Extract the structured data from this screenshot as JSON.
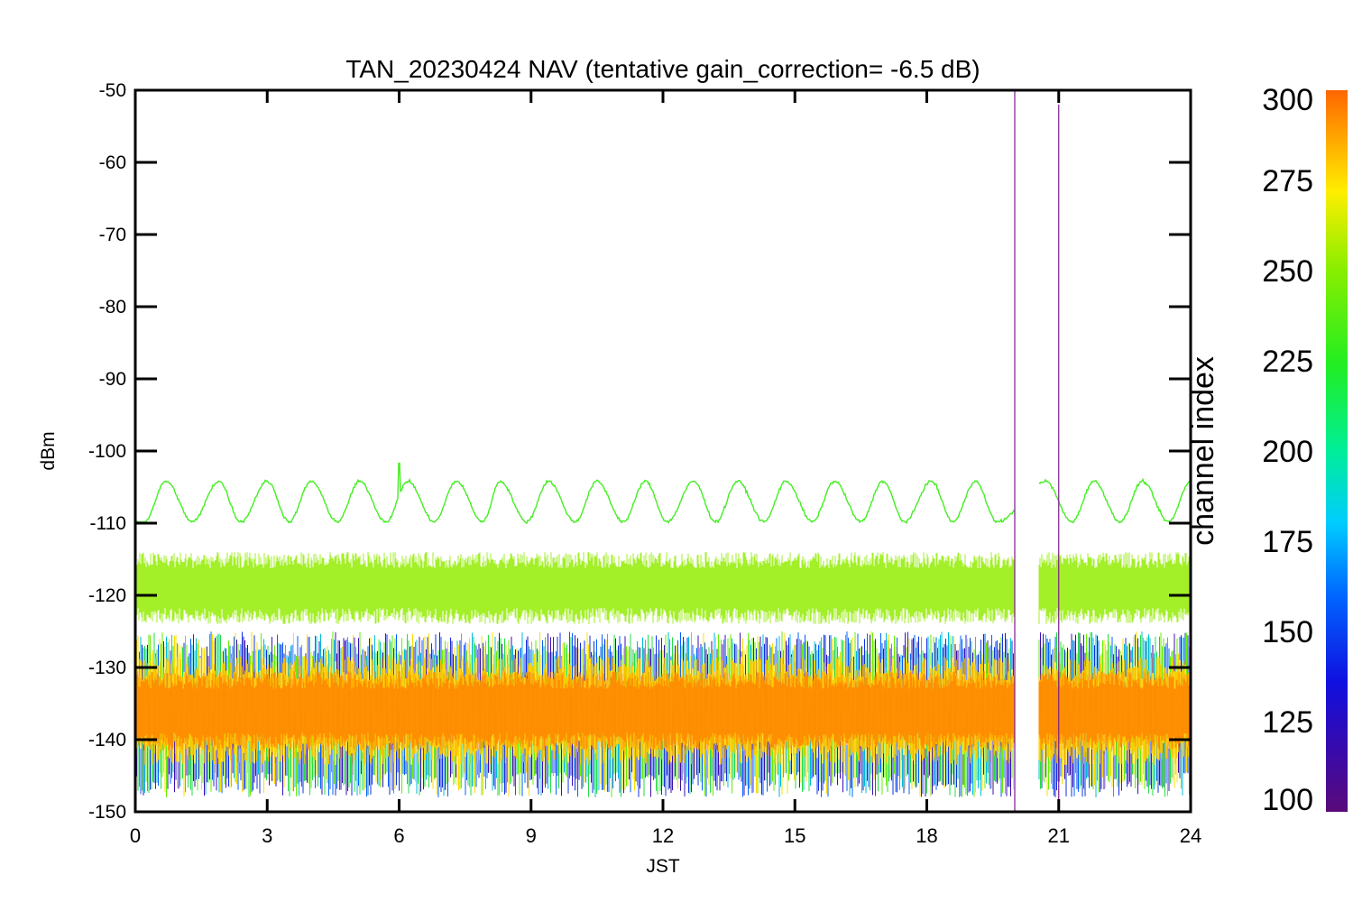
{
  "chart_data": {
    "type": "line",
    "title": "TAN_20230424 NAV (tentative gain_correction= -6.5 dB)",
    "xlabel": "JST",
    "ylabel": "dBm",
    "xlim": [
      0,
      24
    ],
    "ylim": [
      -150,
      -50
    ],
    "x_ticks": [
      "0",
      "3",
      "6",
      "9",
      "12",
      "15",
      "18",
      "21",
      "24"
    ],
    "y_ticks": [
      "-50",
      "-60",
      "-70",
      "-80",
      "-90",
      "-100",
      "-110",
      "-120",
      "-130",
      "-140",
      "-150"
    ],
    "colorbar": {
      "label": "channel index",
      "range": [
        100,
        300
      ],
      "ticks": [
        "300",
        "275",
        "250",
        "225",
        "200",
        "175",
        "150",
        "125",
        "100"
      ],
      "colormap": "rainbow"
    },
    "data_gap": [
      20.0,
      20.55
    ],
    "spikes": [
      {
        "x": 20.0,
        "y_top": -50,
        "color": "#7a1a8c"
      },
      {
        "x": 21.0,
        "y_top": -52,
        "color": "#7a1a8c"
      }
    ],
    "series": [
      {
        "name": "",
        "channel_index": 255,
        "color": "#44ee22",
        "shape": "sinusoid",
        "mean_dBm": -107,
        "amplitude_dB": 2.8,
        "peaks_x": [
          0.7,
          1.9,
          3.0,
          4.0,
          5.1,
          6.2,
          7.3,
          8.3,
          9.4,
          10.5,
          11.6,
          12.7,
          13.7,
          14.8,
          15.9,
          17.0,
          18.1,
          19.1,
          20.7,
          21.8,
          22.9,
          24.0
        ],
        "troughs_x": [
          0.2,
          1.3,
          2.4,
          3.5,
          4.6,
          5.7,
          6.8,
          7.9,
          8.9,
          10.0,
          11.1,
          12.1,
          13.2,
          14.3,
          15.4,
          16.5,
          17.5,
          18.6,
          19.6,
          21.3,
          22.4,
          23.5
        ],
        "spike": {
          "x": 6.0,
          "y": -101.7
        }
      },
      {
        "name": "",
        "channel_index": 260,
        "color": "#99ee11",
        "shape": "noise band",
        "mean_dBm": -119,
        "range_dBm": [
          -124,
          -114
        ]
      },
      {
        "name": "",
        "channel_index": 290,
        "color": "#ff8800",
        "shape": "dense noise band",
        "mean_dBm": -136,
        "range_dBm": [
          -145,
          -128
        ]
      }
    ]
  }
}
